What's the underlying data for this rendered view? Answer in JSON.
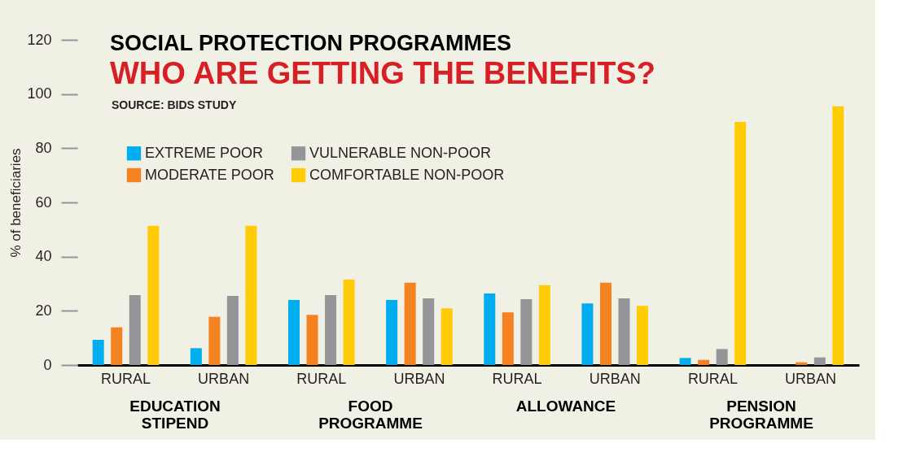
{
  "chart_data": {
    "type": "bar",
    "title": "SOCIAL PROTECTION PROGRAMMES",
    "subtitle": "WHO ARE GETTING THE BENEFITS?",
    "ylabel": "% of beneficiaries",
    "categories": [
      "RURAL",
      "URBAN",
      "RURAL",
      "URBAN",
      "RURAL",
      "URBAN",
      "RURAL",
      "URBAN"
    ],
    "series": [
      {
        "name": "EXTREME POOR",
        "color": "#00aeef",
        "values": [
          9.3,
          6.2,
          24,
          24,
          26.4,
          22.7,
          2.6,
          0
        ]
      },
      {
        "name": "MODERATE POOR",
        "color": "#f58220",
        "values": [
          13.9,
          17.8,
          18.5,
          30.4,
          19.4,
          30.4,
          1.9,
          1.0
        ]
      },
      {
        "name": "VULNERABLE NON-POOR",
        "color": "#939598",
        "values": [
          25.8,
          25.5,
          25.8,
          24.6,
          24.3,
          24.6,
          5.9,
          2.8
        ]
      },
      {
        "name": "COMFORTABLE NON-POOR",
        "color": "#ffcc05",
        "values": [
          51.4,
          51.4,
          31.6,
          20.9,
          29.5,
          21.8,
          89.7,
          95.5
        ]
      }
    ],
    "ylim": [
      0,
      120
    ],
    "yticks": [
      0,
      20,
      40,
      60,
      80,
      100,
      120
    ],
    "grid": false,
    "legend": "top left",
    "annotations": [
      "SOURCE: BIDS STUDY",
      "EDUCATION STIPEND",
      "FOOD PROGRAMME",
      "ALLOWANCE",
      "PENSION PROGRAMME"
    ]
  }
}
